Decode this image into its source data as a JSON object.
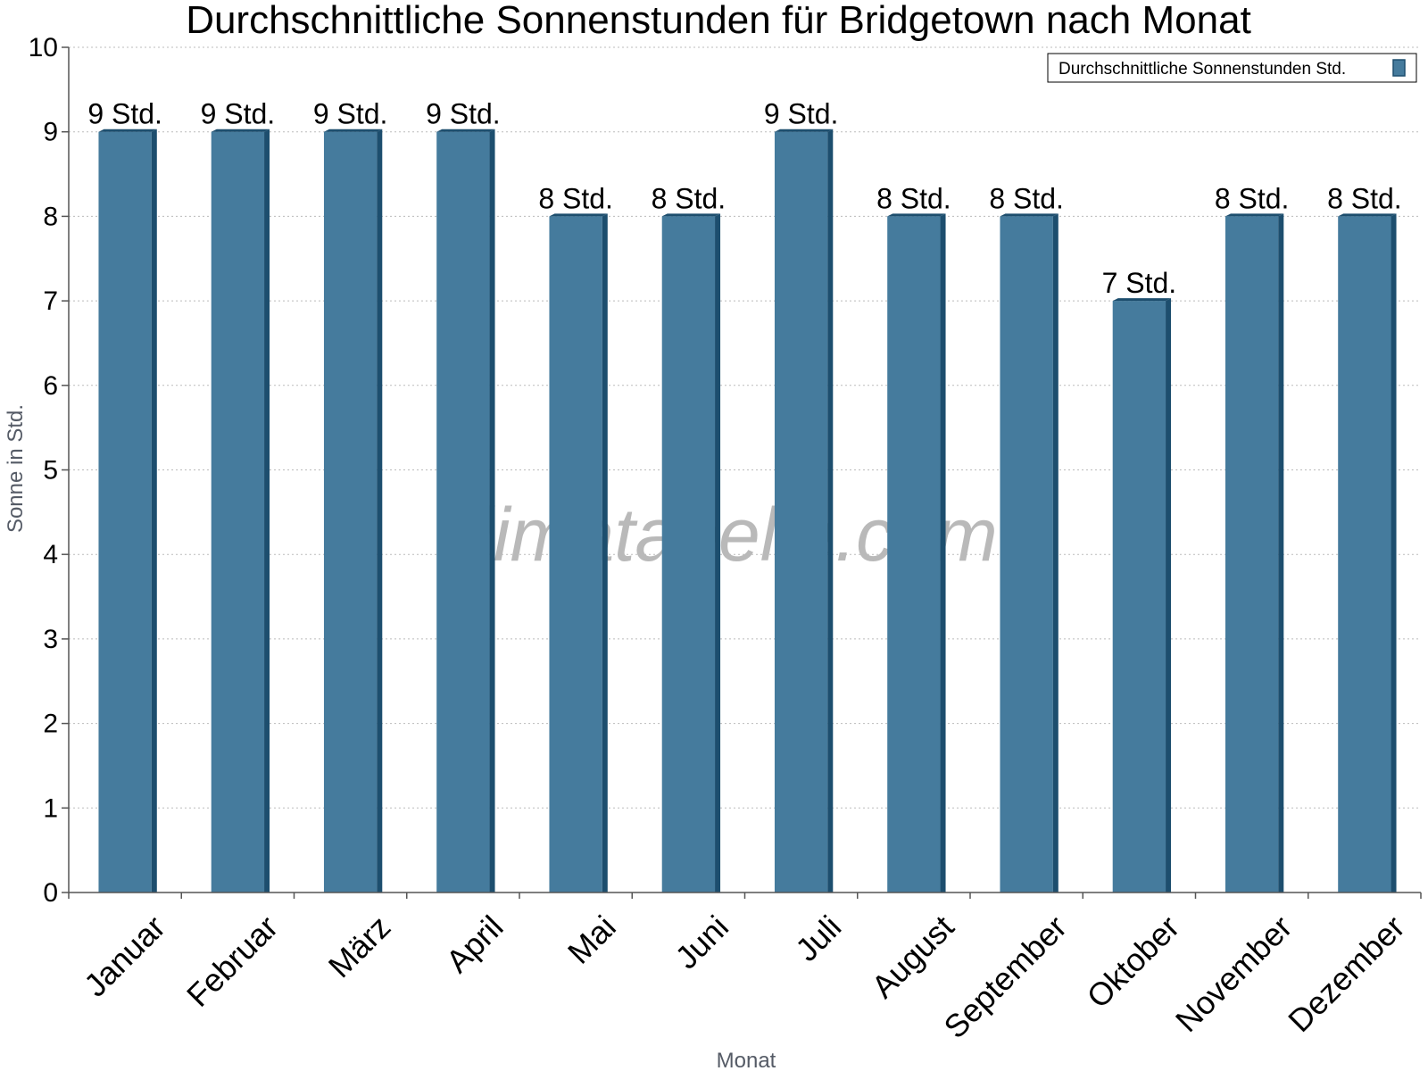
{
  "chart_data": {
    "type": "bar",
    "title": "Durchschnittliche Sonnenstunden für Bridgetown nach Monat",
    "xlabel": "Monat",
    "ylabel": "Sonne in Std.",
    "ylim": [
      0,
      10
    ],
    "yticks": [
      "0",
      "1",
      "2",
      "3",
      "4",
      "5",
      "6",
      "7",
      "8",
      "9",
      "10"
    ],
    "categories": [
      "Januar",
      "Februar",
      "März",
      "April",
      "Mai",
      "Juni",
      "Juli",
      "August",
      "September",
      "Oktober",
      "November",
      "Dezember"
    ],
    "series": [
      {
        "name": "Durchschnittliche Sonnenstunden Std.",
        "values": [
          9,
          9,
          9,
          9,
          8,
          8,
          9,
          8,
          8,
          7,
          8,
          8
        ],
        "labels": [
          "9 Std.",
          "9 Std.",
          "9 Std.",
          "9 Std.",
          "8 Std.",
          "8 Std.",
          "9 Std.",
          "8 Std.",
          "8 Std.",
          "7 Std.",
          "8 Std.",
          "8 Std."
        ],
        "color": "#457b9d"
      }
    ],
    "grid": true,
    "legend": "top-right",
    "watermark": "klimatabelle.com"
  },
  "colors": {
    "bar": "#457b9d",
    "bar_side": "#1d4e6e",
    "grid": "#bbbbbb",
    "axis": "#555555"
  }
}
